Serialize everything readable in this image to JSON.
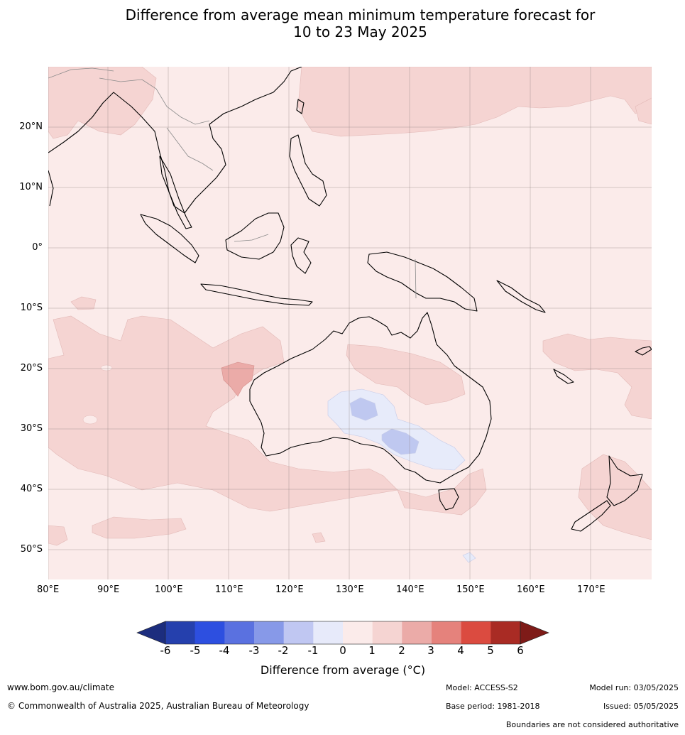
{
  "title_line1": "Difference from average mean minimum temperature forecast for",
  "title_line2": "10 to 23 May 2025",
  "map": {
    "lon_labels": [
      "80°E",
      "90°E",
      "100°E",
      "110°E",
      "120°E",
      "130°E",
      "140°E",
      "150°E",
      "160°E",
      "170°E"
    ],
    "lat_labels": [
      "20°N",
      "10°N",
      "0°",
      "10°S",
      "20°S",
      "30°S",
      "40°S",
      "50°S"
    ],
    "base_color": "#fbebea",
    "light_warm_color": "#f5d4d2",
    "mid_warm_color": "#ebaba8",
    "light_cool_color": "#e7ebfa",
    "mid_cool_color": "#bfc8f0"
  },
  "colorbar": {
    "title": "Difference from average ($^\\circ$C)",
    "title_text": "Difference from average (°C)",
    "ticks": [
      "-6",
      "-5",
      "-4",
      "-3",
      "-2",
      "-1",
      "0",
      "1",
      "2",
      "3",
      "4",
      "5",
      "6"
    ],
    "colors": [
      "#2540ad",
      "#2d4fe0",
      "#5a71e0",
      "#8799e8",
      "#c0c7f2",
      "#e7eafa",
      "#fbebea",
      "#f5d4d2",
      "#ebaba8",
      "#e5827c",
      "#db4b40",
      "#a92b24"
    ],
    "low_extend_color": "#1c2d7e",
    "high_extend_color": "#7e1b18"
  },
  "footer": {
    "website": "www.bom.gov.au/climate",
    "copyright": "© Commonwealth of Australia 2025, Australian Bureau of Meteorology",
    "model": "Model: ACCESS-S2",
    "base_period": "Base period: 1981-2018",
    "model_run": "Model run: 03/05/2025",
    "issued": "Issued: 05/05/2025",
    "disclaimer": "Boundaries are not considered authoritative"
  }
}
